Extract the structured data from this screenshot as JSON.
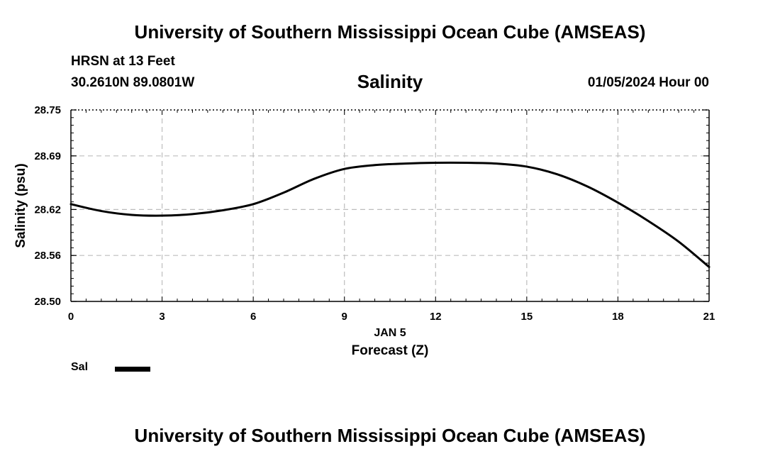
{
  "header": {
    "title": "University of Southern Mississippi Ocean Cube (AMSEAS)",
    "station": "HRSN at 13 Feet",
    "coords": "30.2610N  89.0801W",
    "variable": "Salinity",
    "date": "01/05/2024 Hour 00"
  },
  "footer": {
    "title": "University of Southern Mississippi Ocean Cube (AMSEAS)"
  },
  "legend": {
    "label": "Sal",
    "color": "#000000"
  },
  "chart_data": {
    "type": "line",
    "ylabel": "Salinity (psu)",
    "xlabel": "Forecast (Z)",
    "xsublabel": "JAN 5",
    "xlim": [
      0,
      21
    ],
    "ylim": [
      28.5,
      28.75
    ],
    "xticks": [
      0,
      3,
      6,
      9,
      12,
      15,
      18,
      21
    ],
    "yticks": [
      28.5,
      28.56,
      28.62,
      28.69,
      28.75
    ],
    "ytick_labels": [
      "28.50",
      "28.56",
      "28.62",
      "28.69",
      "28.75"
    ],
    "grid": true,
    "series": [
      {
        "name": "Sal",
        "color": "#000000",
        "x": [
          0,
          1,
          2,
          3,
          4,
          5,
          6,
          7,
          8,
          9,
          10,
          11,
          12,
          13,
          14,
          15,
          16,
          17,
          18,
          19,
          20,
          21
        ],
        "values": [
          28.627,
          28.618,
          28.613,
          28.612,
          28.614,
          28.619,
          28.627,
          28.642,
          28.66,
          28.673,
          28.678,
          28.68,
          28.681,
          28.681,
          28.68,
          28.676,
          28.666,
          28.65,
          28.629,
          28.605,
          28.578,
          28.545
        ]
      }
    ]
  }
}
